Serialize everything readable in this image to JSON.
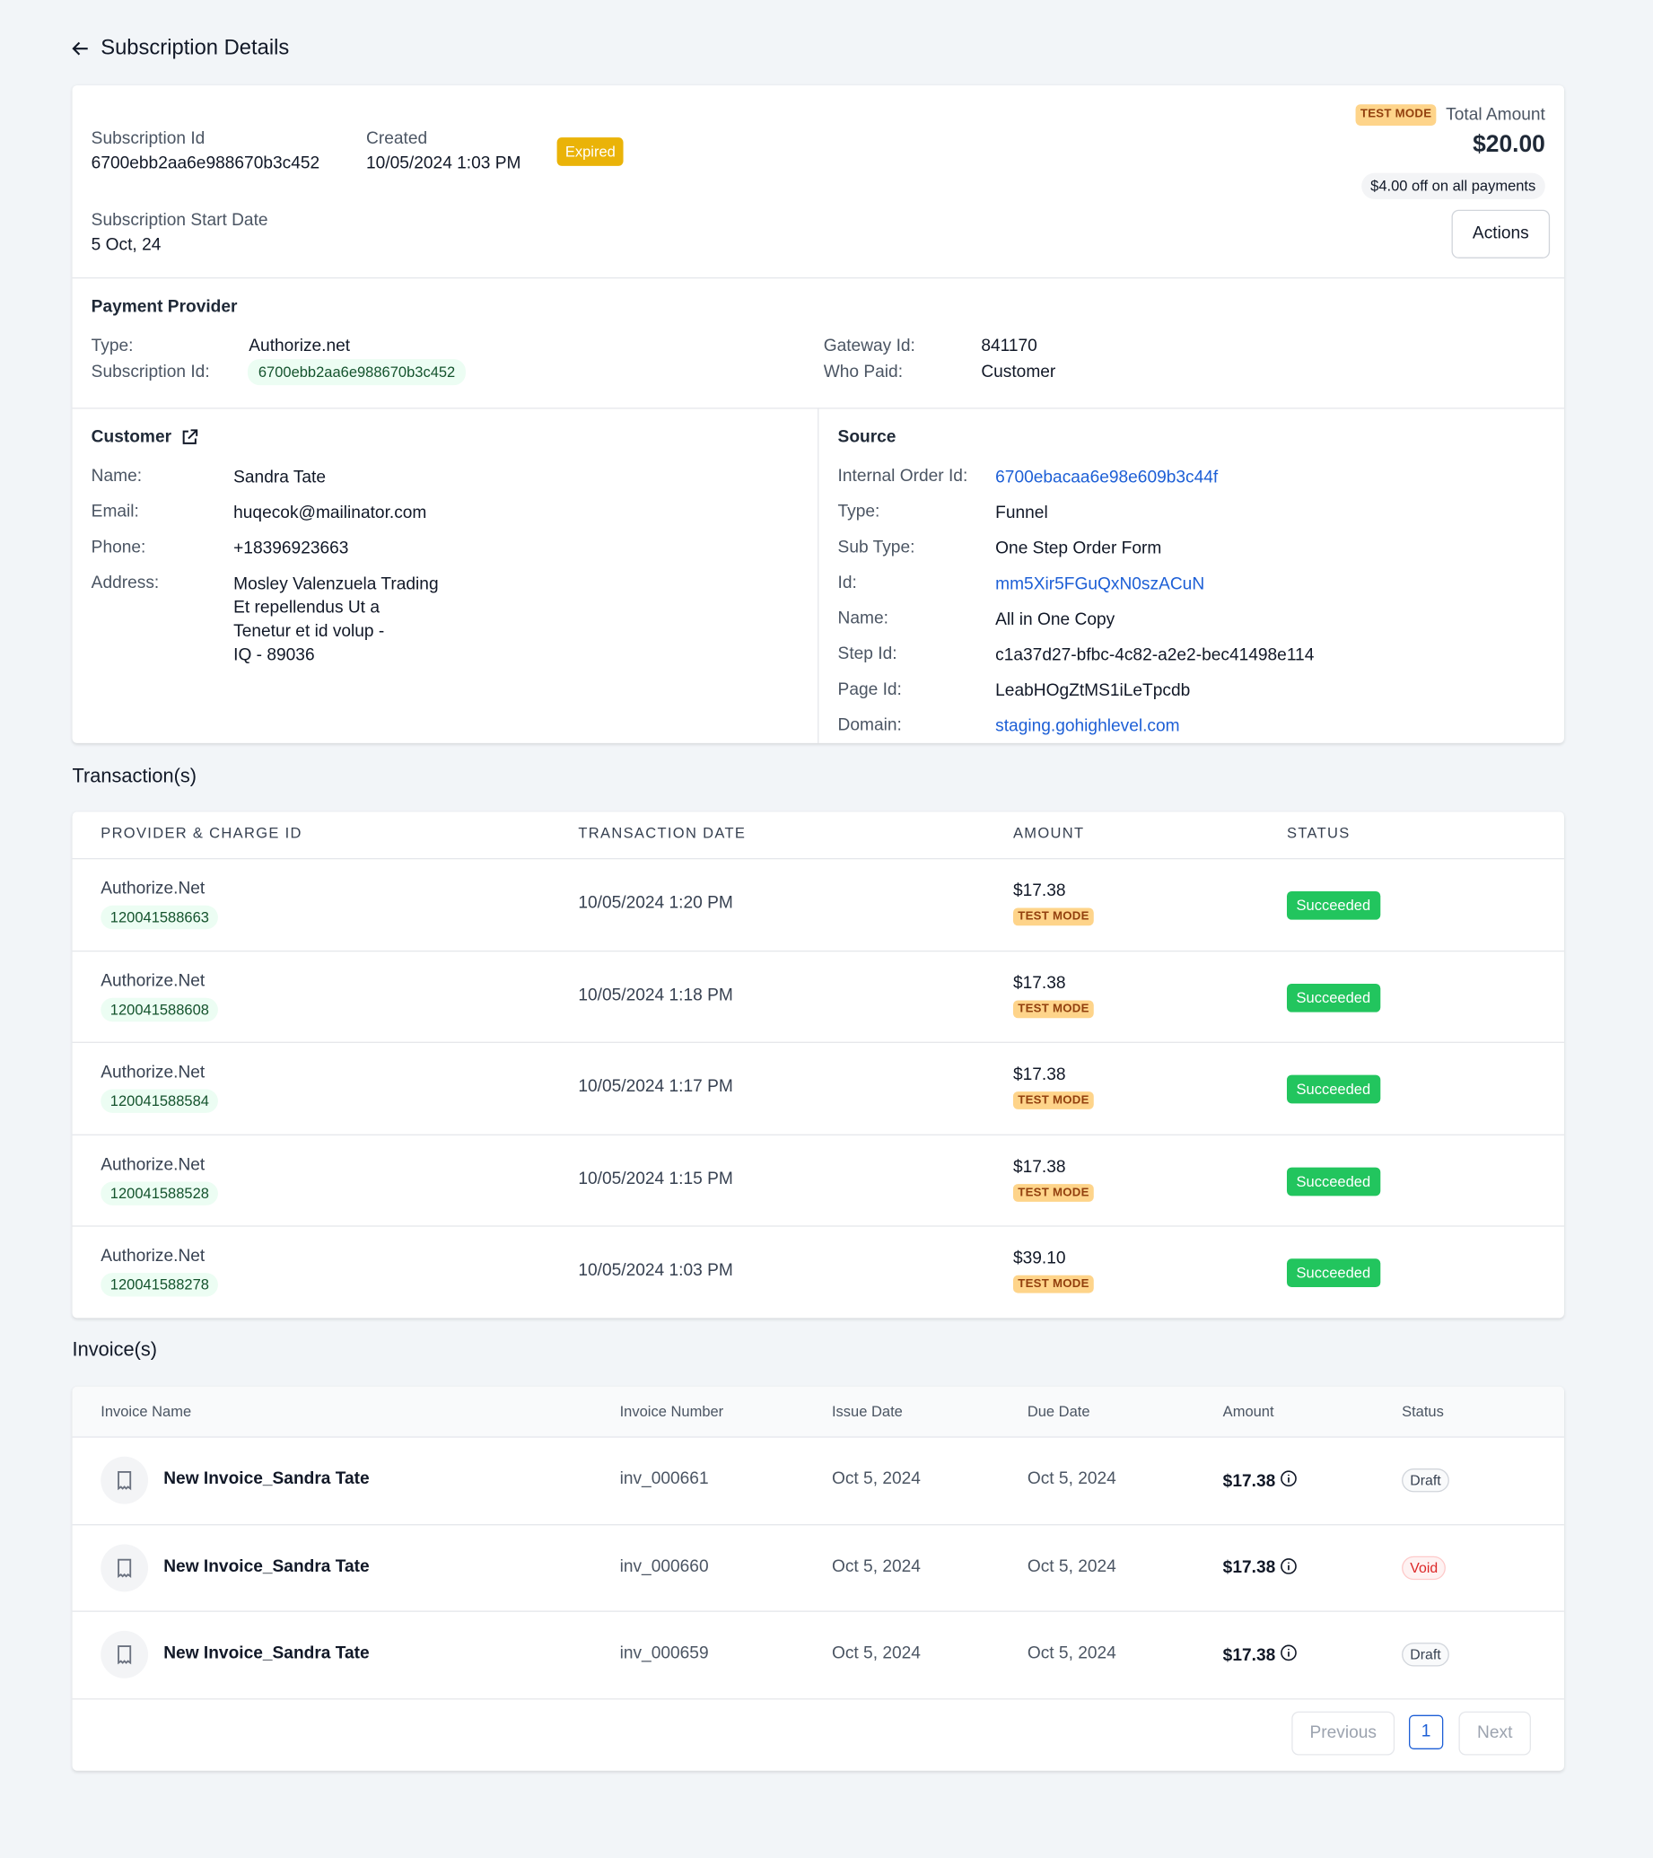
{
  "header": {
    "title": "Subscription Details"
  },
  "summary": {
    "subscription_id_label": "Subscription Id",
    "subscription_id": "6700ebb2aa6e988670b3c452",
    "created_label": "Created",
    "created": "10/05/2024 1:03 PM",
    "status": "Expired",
    "start_date_label": "Subscription Start Date",
    "start_date": "5 Oct, 24",
    "test_mode": "TEST MODE",
    "total_label": "Total Amount",
    "total": "$20.00",
    "discount": "$4.00 off on all payments",
    "actions": "Actions"
  },
  "payment_provider": {
    "title": "Payment Provider",
    "fields": [
      {
        "label": "Type:",
        "value": "Authorize.net"
      },
      {
        "label": "Subscription Id:",
        "value": "6700ebb2aa6e988670b3c452"
      },
      {
        "label": "Gateway Id:",
        "value": "841170"
      },
      {
        "label": "Who Paid:",
        "value": "Customer"
      }
    ]
  },
  "customer": {
    "title": "Customer",
    "fields": [
      {
        "label": "Name:",
        "value": "Sandra Tate"
      },
      {
        "label": "Email:",
        "value": "huqecok@mailinator.com"
      },
      {
        "label": "Phone:",
        "value": "+18396923663"
      },
      {
        "label": "Address:",
        "value": "Mosley Valenzuela Trading\nEt repellendus Ut a\nTenetur et id volup -\nIQ - 89036"
      }
    ]
  },
  "source": {
    "title": "Source",
    "fields": [
      {
        "label": "Internal Order Id:",
        "value": "6700ebacaa6e98e609b3c44f"
      },
      {
        "label": "Type:",
        "value": "Funnel"
      },
      {
        "label": "Sub Type:",
        "value": "One Step Order Form"
      },
      {
        "label": "Id:",
        "value": "mm5Xir5FGuQxN0szACuN"
      },
      {
        "label": "Name:",
        "value": "All in One Copy"
      },
      {
        "label": "Step Id:",
        "value": "c1a37d27-bfbc-4c82-a2e2-bec41498e114"
      },
      {
        "label": "Page Id:",
        "value": "LeabHOgZtMS1iLeTpcdb"
      },
      {
        "label": "Domain:",
        "value": "staging.gohighlevel.com"
      }
    ]
  },
  "transactions": {
    "title": "Transaction(s)",
    "columns": [
      "PROVIDER & CHARGE ID",
      "TRANSACTION DATE",
      "AMOUNT",
      "STATUS"
    ],
    "rows": [
      {
        "provider": "Authorize.Net",
        "charge_id": "120041588663",
        "date": "10/05/2024 1:20 PM",
        "amount": "$17.38",
        "mode": "TEST MODE",
        "status": "Succeeded"
      },
      {
        "provider": "Authorize.Net",
        "charge_id": "120041588608",
        "date": "10/05/2024 1:18 PM",
        "amount": "$17.38",
        "mode": "TEST MODE",
        "status": "Succeeded"
      },
      {
        "provider": "Authorize.Net",
        "charge_id": "120041588584",
        "date": "10/05/2024 1:17 PM",
        "amount": "$17.38",
        "mode": "TEST MODE",
        "status": "Succeeded"
      },
      {
        "provider": "Authorize.Net",
        "charge_id": "120041588528",
        "date": "10/05/2024 1:15 PM",
        "amount": "$17.38",
        "mode": "TEST MODE",
        "status": "Succeeded"
      },
      {
        "provider": "Authorize.Net",
        "charge_id": "120041588278",
        "date": "10/05/2024 1:03 PM",
        "amount": "$39.10",
        "mode": "TEST MODE",
        "status": "Succeeded"
      }
    ]
  },
  "invoices": {
    "title": "Invoice(s)",
    "columns": [
      "Invoice Name",
      "Invoice Number",
      "Issue Date",
      "Due Date",
      "Amount",
      "Status"
    ],
    "rows": [
      {
        "name": "New Invoice_Sandra Tate",
        "number": "inv_000661",
        "issue_date": "Oct 5, 2024",
        "due_date": "Oct 5, 2024",
        "amount": "$17.38",
        "status": "Draft"
      },
      {
        "name": "New Invoice_Sandra Tate",
        "number": "inv_000660",
        "issue_date": "Oct 5, 2024",
        "due_date": "Oct 5, 2024",
        "amount": "$17.38",
        "status": "Void"
      },
      {
        "name": "New Invoice_Sandra Tate",
        "number": "inv_000659",
        "issue_date": "Oct 5, 2024",
        "due_date": "Oct 5, 2024",
        "amount": "$17.38",
        "status": "Draft"
      }
    ]
  },
  "pagination": {
    "previous": "Previous",
    "page": 1,
    "next": "Next"
  }
}
